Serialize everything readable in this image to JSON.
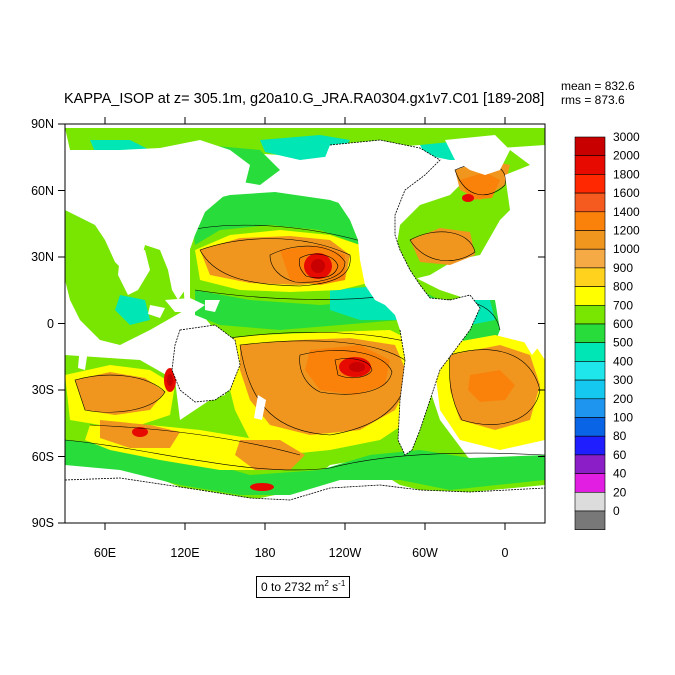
{
  "title": "KAPPA_ISOP at z= 305.1m, g20a10.G_JRA.RA0304.gx1v7.C01 [189-208]",
  "stats": {
    "mean": "mean = 832.6",
    "rms": "rms = 873.6"
  },
  "axes": {
    "lat_labels": [
      "90N",
      "60N",
      "30N",
      "0",
      "30S",
      "60S",
      "90S"
    ],
    "lon_labels": [
      "60E",
      "120E",
      "180",
      "120W",
      "60W",
      "0"
    ]
  },
  "range_label": {
    "text": "0 to 2732 m",
    "sup1": "2",
    "mid": " s",
    "sup2": "-1"
  },
  "colorbar": {
    "levels": [
      "3000",
      "2000",
      "1800",
      "1600",
      "1400",
      "1200",
      "1000",
      "900",
      "800",
      "700",
      "600",
      "500",
      "400",
      "300",
      "200",
      "100",
      "80",
      "60",
      "40",
      "20",
      "0"
    ],
    "colors": [
      "#c80000",
      "#e60a00",
      "#ff2800",
      "#f55a1e",
      "#fa820a",
      "#f0961e",
      "#f5aa46",
      "#ffd21e",
      "#ffff00",
      "#78e600",
      "#28dc3c",
      "#00e6b4",
      "#1ee6eb",
      "#14c8f0",
      "#1e96f0",
      "#0a64e6",
      "#1e1eff",
      "#8c1ec8",
      "#e11ee1",
      "#dcdcdc",
      "#787878"
    ]
  },
  "map_colors": {
    "land": "#ffffff",
    "ocean_base": "#78e600",
    "green": "#28dc3c",
    "cyan": "#00e6b4",
    "yellow": "#ffff00",
    "gold": "#ffd21e",
    "orange": "#f0961e",
    "dark_orange": "#fa820a",
    "red": "#e60a00",
    "dark_red": "#c80000"
  }
}
